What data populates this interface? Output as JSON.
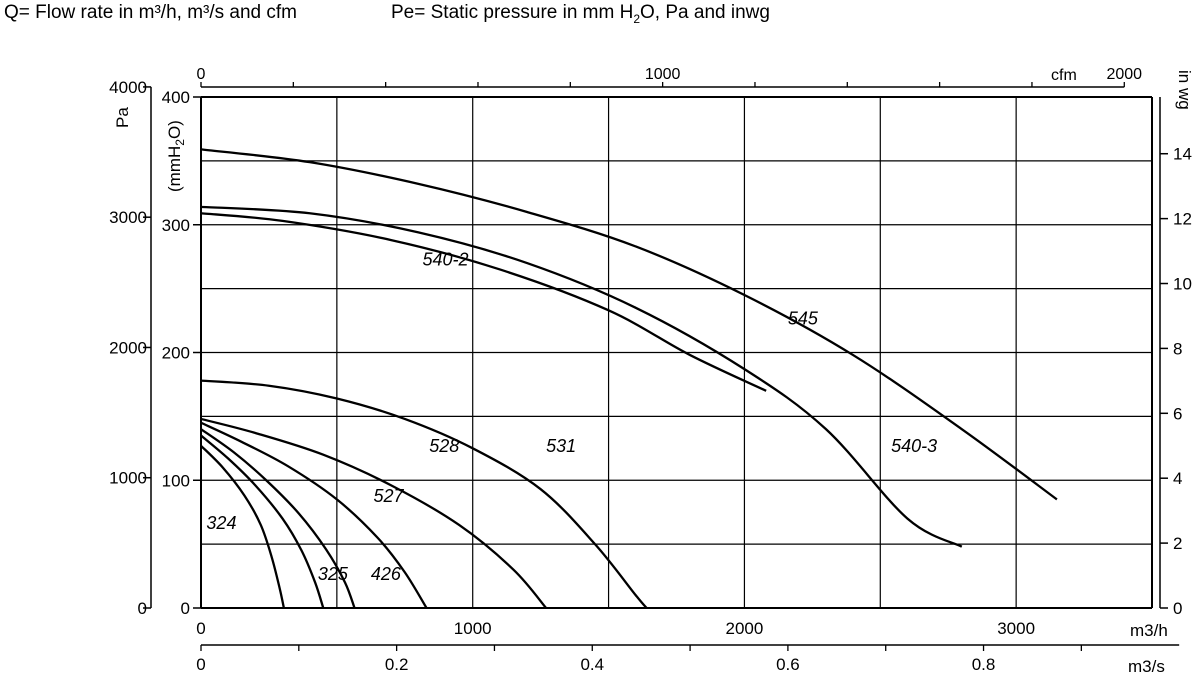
{
  "header": {
    "q_label": "Q= Flow rate in m³/h, m³/s and cfm",
    "pe_prefix": "Pe= Static pressure in mm H",
    "pe_sub": "2",
    "pe_suffix": "O, Pa and inwg"
  },
  "axes": {
    "left_outer_unit": "Pa",
    "left_inner_unit_prefix": "(mmH",
    "left_inner_unit_sub": "2",
    "left_inner_unit_suffix": "O)",
    "right_unit": "in wg",
    "top_unit": "cfm",
    "bottom_unit_1": "m3/h",
    "bottom_unit_2": "m3/s"
  },
  "chart_data": {
    "type": "line",
    "title": "",
    "xlabel": "m3/h",
    "ylabel": "mmH2O",
    "xlim": [
      0,
      3500
    ],
    "ylim": [
      0,
      400
    ],
    "grid": true,
    "x_ticks_m3h": [
      "0",
      "1000",
      "2000",
      "3000"
    ],
    "x_ticks_m3s": [
      "0",
      "0.2",
      "0.4",
      "0.6",
      "0.8"
    ],
    "x_ticks_cfm": [
      "0",
      "1000",
      "2000"
    ],
    "y_ticks_mmh2o": [
      "0",
      "100",
      "200",
      "300",
      "400"
    ],
    "y_ticks_pa": [
      "0",
      "1000",
      "2000",
      "3000",
      "4000"
    ],
    "y_ticks_inwg": [
      "0",
      "2",
      "4",
      "6",
      "8",
      "10",
      "12",
      "14"
    ],
    "series": [
      {
        "name": "324",
        "points": [
          [
            0,
            127
          ],
          [
            80,
            110
          ],
          [
            160,
            88
          ],
          [
            220,
            65
          ],
          [
            260,
            40
          ],
          [
            290,
            15
          ],
          [
            305,
            0
          ]
        ]
      },
      {
        "name": "325",
        "points": [
          [
            0,
            135
          ],
          [
            100,
            117
          ],
          [
            200,
            96
          ],
          [
            300,
            70
          ],
          [
            370,
            45
          ],
          [
            420,
            20
          ],
          [
            450,
            0
          ]
        ]
      },
      {
        "name": "426",
        "points": [
          [
            0,
            140
          ],
          [
            120,
            122
          ],
          [
            240,
            100
          ],
          [
            360,
            74
          ],
          [
            460,
            46
          ],
          [
            530,
            20
          ],
          [
            565,
            0
          ]
        ]
      },
      {
        "name": "527",
        "points": [
          [
            0,
            145
          ],
          [
            150,
            130
          ],
          [
            320,
            111
          ],
          [
            500,
            85
          ],
          [
            650,
            55
          ],
          [
            750,
            28
          ],
          [
            830,
            0
          ]
        ]
      },
      {
        "name": "528",
        "points": [
          [
            0,
            148
          ],
          [
            200,
            137
          ],
          [
            450,
            120
          ],
          [
            700,
            96
          ],
          [
            950,
            65
          ],
          [
            1150,
            30
          ],
          [
            1270,
            0
          ]
        ]
      },
      {
        "name": "531",
        "points": [
          [
            0,
            178
          ],
          [
            250,
            174
          ],
          [
            500,
            164
          ],
          [
            750,
            148
          ],
          [
            1000,
            125
          ],
          [
            1250,
            93
          ],
          [
            1450,
            50
          ],
          [
            1600,
            10
          ],
          [
            1640,
            0
          ]
        ]
      },
      {
        "name": "540-2",
        "points": [
          [
            0,
            309
          ],
          [
            300,
            303
          ],
          [
            700,
            288
          ],
          [
            1100,
            265
          ],
          [
            1500,
            233
          ],
          [
            1800,
            198
          ],
          [
            2080,
            170
          ]
        ]
      },
      {
        "name": "540-3",
        "points": [
          [
            0,
            314
          ],
          [
            400,
            309
          ],
          [
            800,
            294
          ],
          [
            1200,
            270
          ],
          [
            1600,
            235
          ],
          [
            2000,
            187
          ],
          [
            2300,
            140
          ],
          [
            2600,
            70
          ],
          [
            2800,
            48
          ]
        ]
      },
      {
        "name": "545",
        "points": [
          [
            0,
            359
          ],
          [
            400,
            349
          ],
          [
            800,
            332
          ],
          [
            1200,
            310
          ],
          [
            1600,
            283
          ],
          [
            2000,
            245
          ],
          [
            2400,
            198
          ],
          [
            2800,
            140
          ],
          [
            3150,
            85
          ]
        ]
      }
    ]
  }
}
